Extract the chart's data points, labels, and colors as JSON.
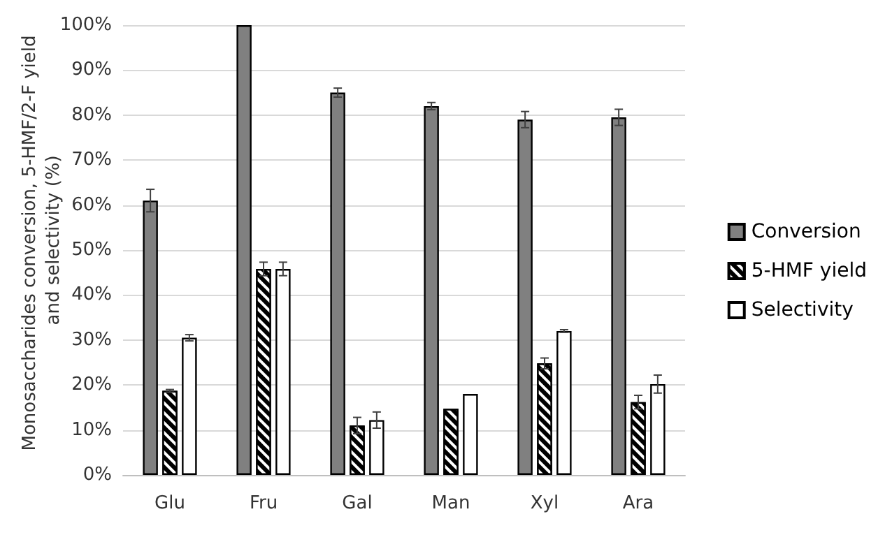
{
  "chart_data": {
    "type": "bar",
    "ylabel": "Monosaccharides conversion, 5-HMF/2-F yield and selectivity (%)",
    "categories": [
      "Glu",
      "Fru",
      "Gal",
      "Man",
      "Xyl",
      "Ara"
    ],
    "series": [
      {
        "name": "Conversion",
        "color": "#808080",
        "values": [
          61,
          100,
          85,
          82,
          79,
          79.5
        ],
        "errors": [
          2.5,
          null,
          1,
          0.8,
          1.8,
          1.8
        ]
      },
      {
        "name": "5-HMF yield",
        "color": "#000000",
        "values": [
          18.7,
          45.8,
          11,
          14.7,
          24.8,
          16.2
        ],
        "errors": [
          0.3,
          1.5,
          1.8,
          null,
          1.2,
          1.5
        ]
      },
      {
        "name": "Selectivity",
        "color": "#ffffff",
        "values": [
          30.5,
          45.8,
          12.2,
          18,
          32,
          20.2
        ],
        "errors": [
          0.7,
          1.5,
          1.8,
          null,
          0.3,
          2
        ]
      }
    ],
    "ylim": [
      0,
      100
    ],
    "yticks": [
      {
        "value": 0,
        "label": "0%"
      },
      {
        "value": 10,
        "label": "10%"
      },
      {
        "value": 20,
        "label": "20%"
      },
      {
        "value": 30,
        "label": "30%"
      },
      {
        "value": 40,
        "label": "40%"
      },
      {
        "value": 50,
        "label": "50%"
      },
      {
        "value": 60,
        "label": "60%"
      },
      {
        "value": 70,
        "label": "70%"
      },
      {
        "value": 80,
        "label": "80%"
      },
      {
        "value": 90,
        "label": "90%"
      },
      {
        "value": 100,
        "label": "100%"
      }
    ],
    "grid": "y",
    "legend": "right"
  }
}
